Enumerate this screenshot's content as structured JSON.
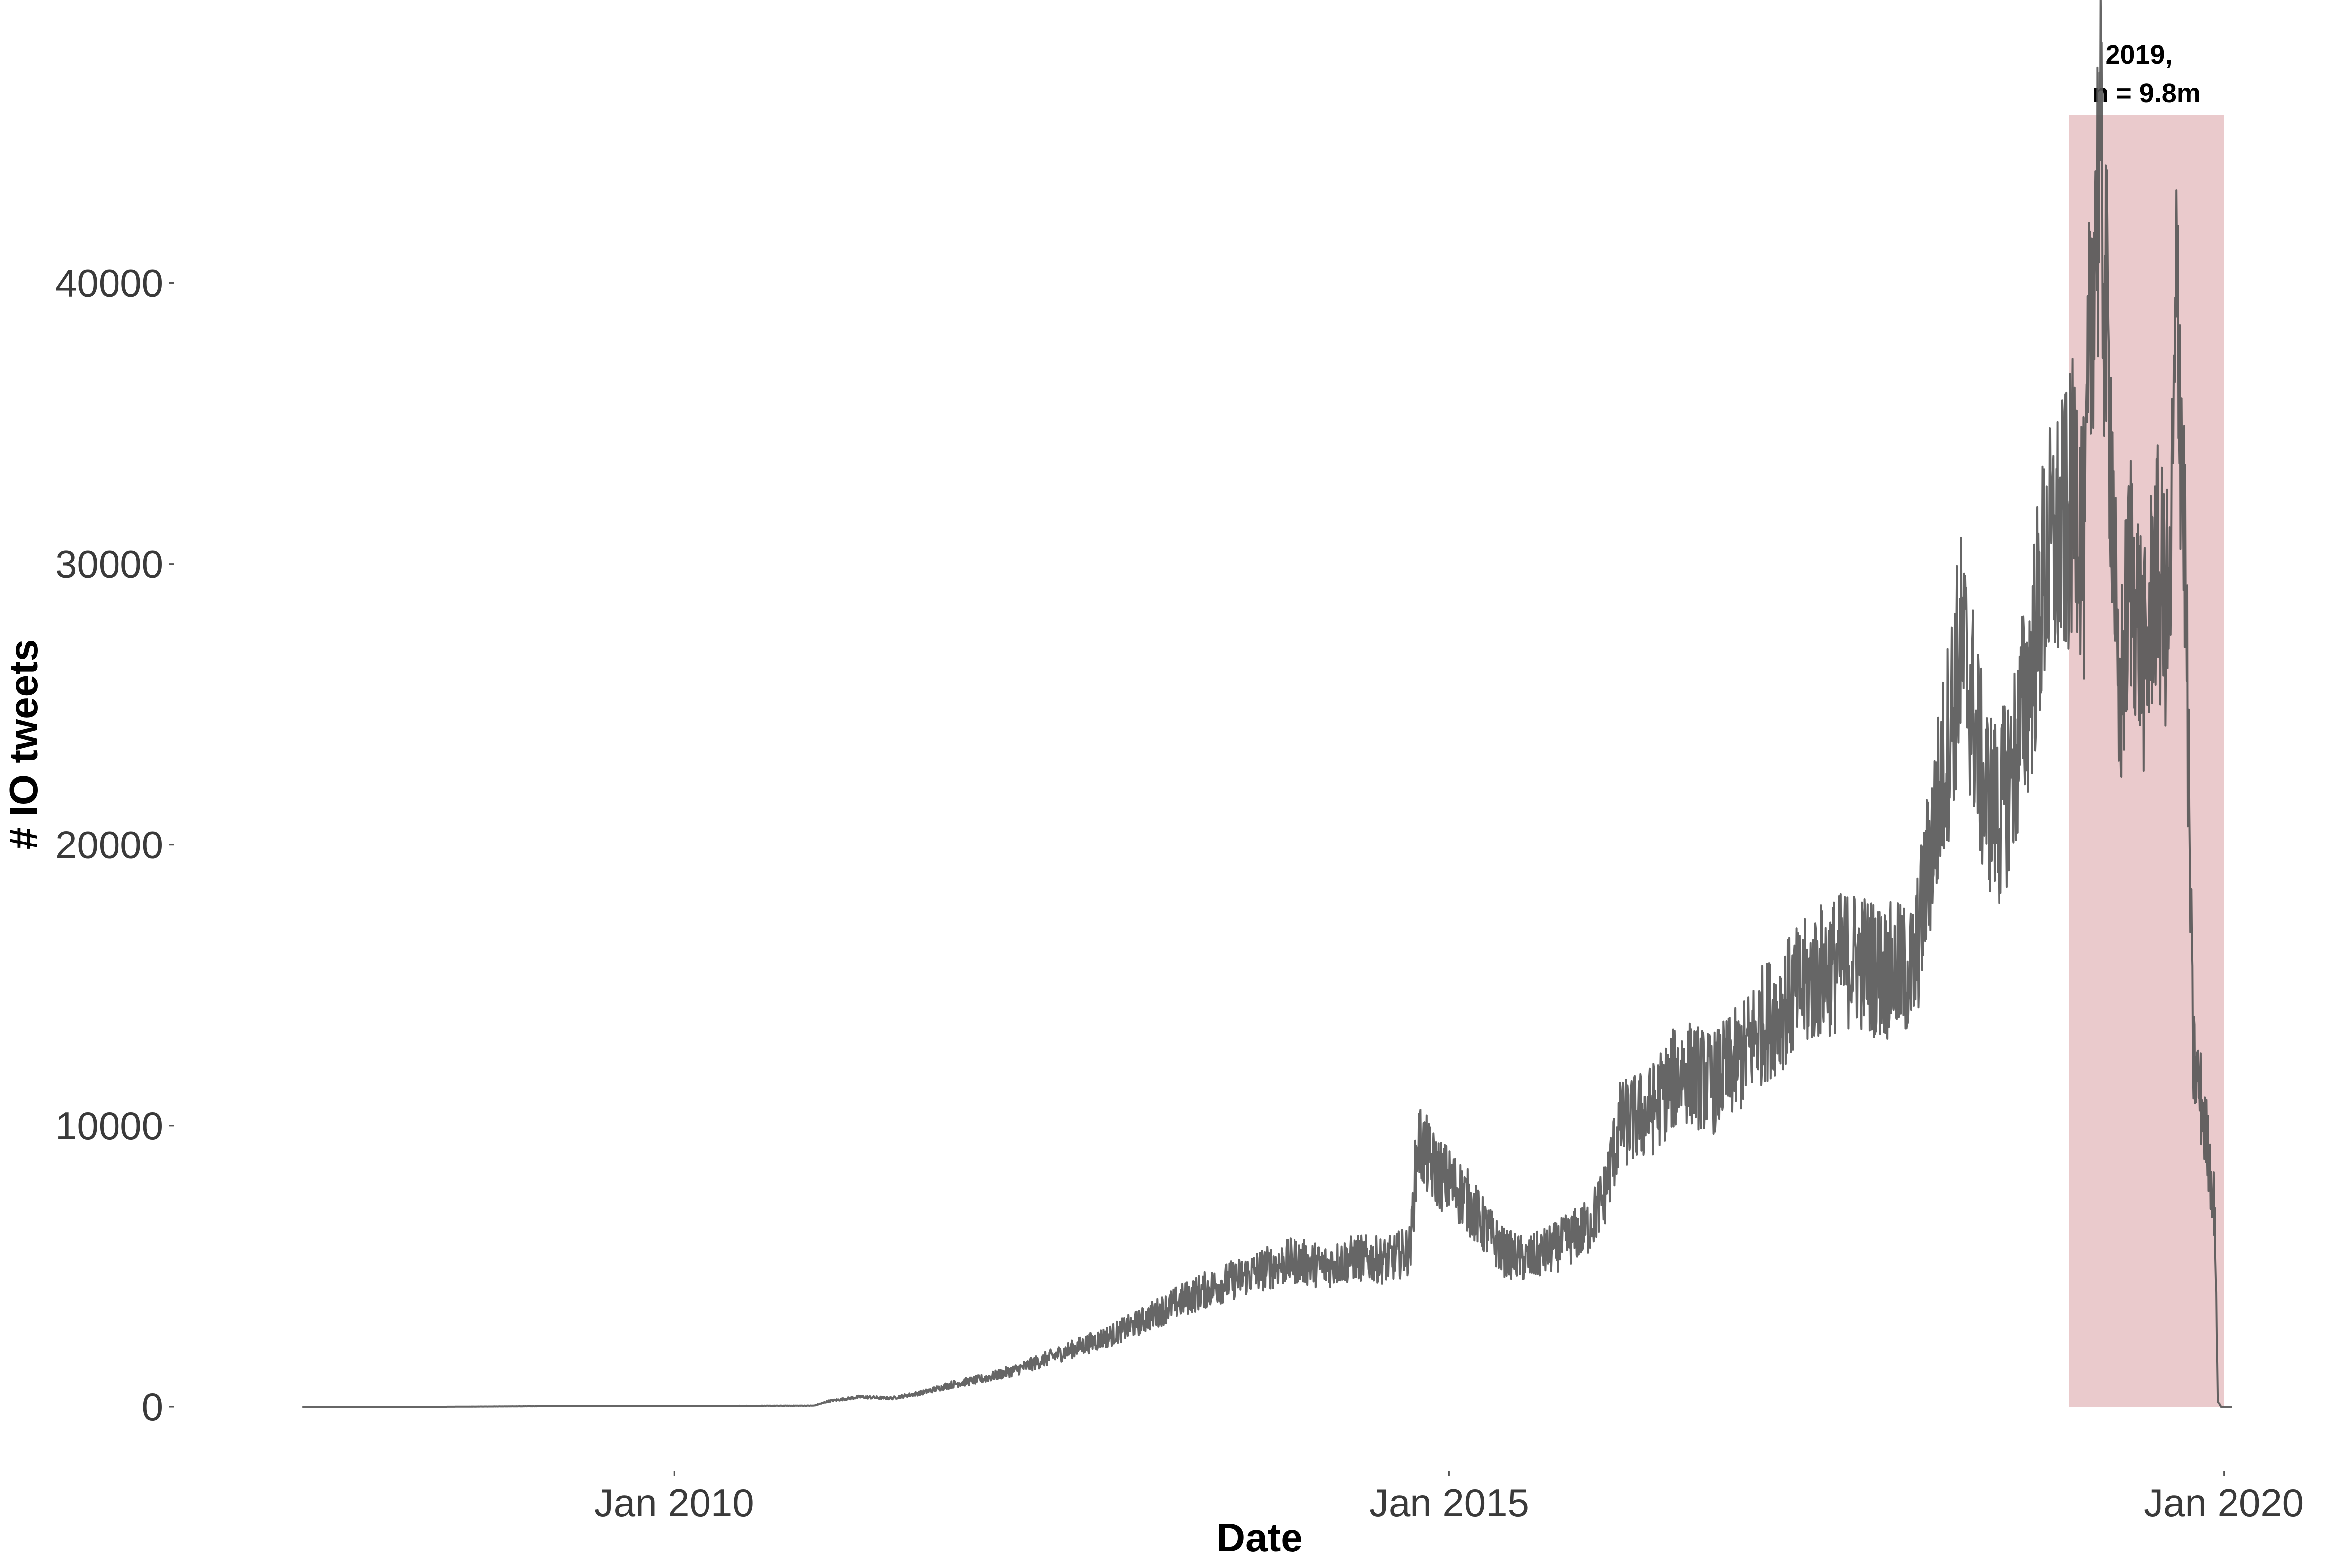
{
  "chart_data": {
    "type": "line",
    "title": "",
    "xlabel": "Date",
    "ylabel": "# IO tweets",
    "ylim": [
      0,
      46000
    ],
    "xlim": [
      2007.4,
      2020.3
    ],
    "yticks": [
      0,
      10000,
      20000,
      30000,
      40000
    ],
    "xticks": [
      {
        "label": "Jan 2010",
        "value": 2010.0
      },
      {
        "label": "Jan 2015",
        "value": 2015.0
      },
      {
        "label": "Jan 2020",
        "value": 2020.0
      }
    ],
    "grid": false,
    "highlight": {
      "x_start": 2019.0,
      "x_end": 2020.0,
      "color": "#e8c4c7",
      "label_line1": "2019,",
      "label_line2": "n = 9.8m"
    },
    "series": [
      {
        "name": "# IO tweets",
        "color": "#555555",
        "x": [
          2007.6,
          2008.5,
          2009.5,
          2010.3,
          2010.9,
          2011.0,
          2011.2,
          2011.4,
          2011.6,
          2011.8,
          2012.0,
          2012.2,
          2012.4,
          2012.6,
          2012.8,
          2013.0,
          2013.2,
          2013.4,
          2013.6,
          2013.8,
          2014.0,
          2014.2,
          2014.4,
          2014.6,
          2014.75,
          2014.8,
          2014.9,
          2015.0,
          2015.1,
          2015.2,
          2015.35,
          2015.5,
          2015.7,
          2015.9,
          2016.0,
          2016.1,
          2016.3,
          2016.5,
          2016.7,
          2016.9,
          2017.0,
          2017.2,
          2017.4,
          2017.6,
          2017.8,
          2018.0,
          2018.1,
          2018.2,
          2018.3,
          2018.35,
          2018.45,
          2018.55,
          2018.65,
          2018.75,
          2018.85,
          2018.95,
          2019.0,
          2019.05,
          2019.1,
          2019.15,
          2019.2,
          2019.28,
          2019.32,
          2019.4,
          2019.45,
          2019.5,
          2019.55,
          2019.6,
          2019.65,
          2019.7,
          2019.75,
          2019.8,
          2019.85,
          2019.9,
          2019.94,
          2019.96,
          2019.98,
          2020.05
        ],
        "values": [
          0,
          0,
          30,
          30,
          40,
          200,
          350,
          300,
          500,
          800,
          1000,
          1300,
          1700,
          2100,
          2500,
          3000,
          3600,
          4100,
          4500,
          4900,
          5200,
          5000,
          5300,
          5200,
          5600,
          9500,
          8500,
          8000,
          7500,
          6600,
          5500,
          5200,
          5700,
          6400,
          7500,
          10000,
          10500,
          12000,
          11500,
          12500,
          13500,
          14500,
          15500,
          16000,
          15500,
          15500,
          19500,
          23000,
          27000,
          26000,
          22000,
          21000,
          23000,
          26000,
          30000,
          31000,
          31500,
          33000,
          30000,
          41000,
          44000,
          33000,
          24000,
          30000,
          28000,
          26000,
          30000,
          29000,
          28000,
          40000,
          30000,
          12500,
          11000,
          9000,
          7000,
          200,
          0,
          0
        ]
      }
    ]
  }
}
